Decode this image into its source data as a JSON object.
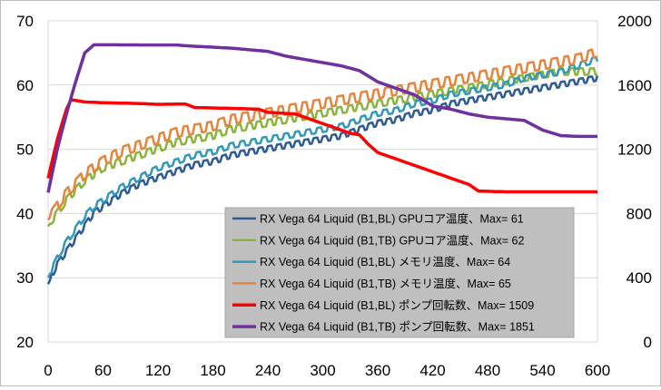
{
  "chart_data": {
    "type": "line",
    "title": "",
    "xlabel": "",
    "ylabel": "",
    "y2label": "",
    "xlim": [
      0,
      600
    ],
    "ylim": [
      20,
      70
    ],
    "y2lim": [
      0,
      2000
    ],
    "x_ticks": [
      0,
      60,
      120,
      180,
      240,
      300,
      360,
      420,
      480,
      540,
      600
    ],
    "y_ticks": [
      20,
      30,
      40,
      50,
      60,
      70
    ],
    "y2_ticks": [
      0,
      400,
      800,
      1200,
      1600,
      2000
    ],
    "grid": "horizontal",
    "legend_position": "bottom-right",
    "series": [
      {
        "name": "RX Vega 64 Liquid (B1,BL) GPUコア温度、Max= 61",
        "axis": "left",
        "color": "#2e5b95",
        "x": [
          0,
          10,
          20,
          30,
          40,
          50,
          60,
          80,
          100,
          120,
          140,
          160,
          180,
          200,
          220,
          240,
          260,
          280,
          300,
          320,
          340,
          360,
          380,
          400,
          420,
          440,
          460,
          480,
          500,
          520,
          540,
          560,
          580,
          600
        ],
        "y": [
          29,
          32,
          34,
          36,
          38,
          40,
          41,
          43,
          44.5,
          45.5,
          46.5,
          47.5,
          48,
          49,
          49.5,
          50,
          50.5,
          51,
          51.5,
          52,
          53,
          54,
          54.5,
          55.5,
          56,
          57,
          57.5,
          58,
          58.5,
          59,
          59.5,
          60,
          60.5,
          61
        ]
      },
      {
        "name": "RX Vega 64 Liquid (B1,TB) GPUコア温度、Max= 62",
        "axis": "left",
        "color": "#8cb43d",
        "x": [
          0,
          10,
          20,
          30,
          40,
          50,
          60,
          80,
          100,
          120,
          140,
          160,
          180,
          200,
          220,
          240,
          260,
          280,
          300,
          320,
          340,
          360,
          380,
          400,
          420,
          440,
          460,
          480,
          500,
          520,
          540,
          560,
          580,
          600
        ],
        "y": [
          38,
          40,
          42,
          43.5,
          45,
          46,
          47,
          48,
          49,
          50,
          51,
          51.5,
          52,
          53,
          53.5,
          54,
          54.5,
          55,
          55.5,
          56,
          56.5,
          57,
          57.5,
          58,
          58.5,
          59,
          59.5,
          60,
          60.5,
          61,
          61.5,
          62,
          62,
          62
        ]
      },
      {
        "name": "RX Vega 64 Liquid (B1,BL) メモリ温度、Max= 64",
        "axis": "left",
        "color": "#3399bb",
        "x": [
          0,
          10,
          20,
          30,
          40,
          50,
          60,
          80,
          100,
          120,
          140,
          160,
          180,
          200,
          220,
          240,
          260,
          280,
          300,
          320,
          340,
          360,
          380,
          400,
          420,
          440,
          460,
          480,
          500,
          520,
          540,
          560,
          580,
          600
        ],
        "y": [
          30,
          33,
          35.5,
          37.5,
          39.5,
          41,
          42,
          44,
          45.5,
          47,
          48,
          49,
          49.5,
          50.5,
          51,
          51.5,
          52,
          52.5,
          53,
          53.5,
          54.5,
          55.5,
          56,
          57,
          57.5,
          58.5,
          59,
          59.5,
          60,
          61,
          61.5,
          62,
          63,
          64
        ]
      },
      {
        "name": "RX Vega 64 Liquid (B1,TB) メモリ温度、Max= 65",
        "axis": "left",
        "color": "#e8843c",
        "x": [
          0,
          10,
          20,
          30,
          40,
          50,
          60,
          80,
          100,
          120,
          140,
          160,
          180,
          200,
          220,
          240,
          260,
          280,
          300,
          320,
          340,
          360,
          380,
          400,
          420,
          440,
          460,
          480,
          500,
          520,
          540,
          560,
          580,
          600
        ],
        "y": [
          39,
          41,
          43,
          44.5,
          46,
          47,
          48,
          49.5,
          50.5,
          51.5,
          52.5,
          53,
          53.5,
          54.5,
          55,
          55.5,
          56,
          56.5,
          57,
          57.5,
          58,
          58.5,
          59,
          59.5,
          60,
          60.5,
          61,
          61.5,
          62,
          62.5,
          63,
          63.5,
          64,
          65
        ]
      },
      {
        "name": "RX Vega 64 Liquid (B1,BL) ポンプ回転数、Max= 1509",
        "axis": "right",
        "color": "#ff0000",
        "x": [
          0,
          10,
          20,
          25,
          40,
          60,
          100,
          120,
          150,
          160,
          200,
          230,
          240,
          270,
          280,
          300,
          310,
          320,
          330,
          340,
          350,
          360,
          380,
          400,
          420,
          440,
          460,
          470,
          500,
          540,
          580,
          600
        ],
        "y": [
          1020,
          1260,
          1450,
          1509,
          1495,
          1490,
          1485,
          1480,
          1482,
          1460,
          1455,
          1450,
          1430,
          1420,
          1400,
          1360,
          1340,
          1320,
          1300,
          1290,
          1230,
          1180,
          1140,
          1100,
          1060,
          1020,
          980,
          940,
          935,
          935,
          935,
          935
        ]
      },
      {
        "name": "RX Vega 64 Liquid (B1,TB) ポンプ回転数、Max= 1851",
        "axis": "right",
        "color": "#7030a0",
        "x": [
          0,
          10,
          20,
          30,
          40,
          50,
          60,
          100,
          140,
          150,
          200,
          240,
          260,
          300,
          320,
          340,
          360,
          380,
          400,
          420,
          440,
          460,
          480,
          500,
          520,
          540,
          560,
          580,
          600
        ],
        "y": [
          930,
          1200,
          1420,
          1620,
          1800,
          1851,
          1851,
          1850,
          1850,
          1845,
          1830,
          1810,
          1780,
          1740,
          1720,
          1690,
          1620,
          1580,
          1540,
          1470,
          1450,
          1420,
          1400,
          1390,
          1380,
          1320,
          1285,
          1280,
          1280
        ]
      }
    ]
  }
}
